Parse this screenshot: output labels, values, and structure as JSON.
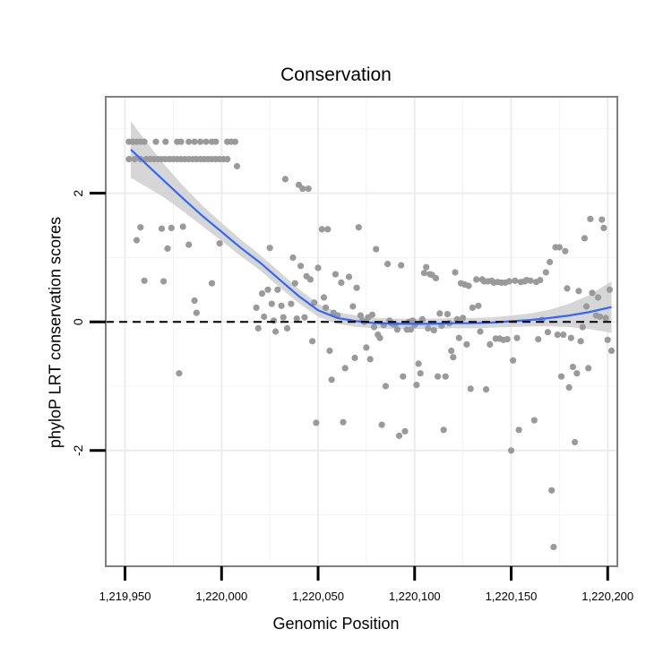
{
  "chart_data": {
    "type": "scatter",
    "title": "Conservation",
    "xlabel": "Genomic Position",
    "ylabel": "phyloP LRT conservation scores",
    "xlim": [
      1219940,
      1220205
    ],
    "ylim": [
      -3.8,
      3.5
    ],
    "x_ticks": [
      1219950,
      1220000,
      1220050,
      1220100,
      1220150,
      1220200
    ],
    "x_tick_labels": [
      "1,219,950",
      "1,220,000",
      "1,220,050",
      "1,220,100",
      "1,220,150",
      "1,220,200"
    ],
    "y_ticks": [
      -2,
      0,
      2
    ],
    "y_tick_labels": [
      "-2",
      "0",
      "2"
    ],
    "reference_line": {
      "y": 0,
      "style": "dashed"
    },
    "colors": {
      "points": "#9a9a9a",
      "smooth_line": "#3366ff",
      "ribbon": "#cfcfcf",
      "grid": "#ececec",
      "panel_border": "#808080"
    },
    "points": [
      [
        1219952,
        2.8
      ],
      [
        1219954,
        2.8
      ],
      [
        1219956,
        2.8
      ],
      [
        1219958,
        2.8
      ],
      [
        1219960,
        2.8
      ],
      [
        1219966,
        2.8
      ],
      [
        1219971,
        2.8
      ],
      [
        1219977,
        2.8
      ],
      [
        1219979,
        2.8
      ],
      [
        1219983,
        2.8
      ],
      [
        1219986,
        2.8
      ],
      [
        1219989,
        2.8
      ],
      [
        1219992,
        2.8
      ],
      [
        1219995,
        2.8
      ],
      [
        1219997,
        2.8
      ],
      [
        1220003,
        2.8
      ],
      [
        1220005,
        2.8
      ],
      [
        1220007,
        2.8
      ],
      [
        1219952,
        2.53
      ],
      [
        1219955,
        2.53
      ],
      [
        1219958,
        2.53
      ],
      [
        1219961,
        2.53
      ],
      [
        1219963,
        2.53
      ],
      [
        1219965,
        2.53
      ],
      [
        1219967,
        2.53
      ],
      [
        1219969,
        2.53
      ],
      [
        1219971,
        2.53
      ],
      [
        1219973,
        2.53
      ],
      [
        1219975,
        2.53
      ],
      [
        1219977,
        2.53
      ],
      [
        1219979,
        2.53
      ],
      [
        1219981,
        2.53
      ],
      [
        1219983,
        2.53
      ],
      [
        1219985,
        2.53
      ],
      [
        1219987,
        2.53
      ],
      [
        1219989,
        2.53
      ],
      [
        1219991,
        2.53
      ],
      [
        1219993,
        2.53
      ],
      [
        1219995,
        2.53
      ],
      [
        1219997,
        2.53
      ],
      [
        1219999,
        2.53
      ],
      [
        1220001,
        2.53
      ],
      [
        1220003,
        2.53
      ],
      [
        1220008,
        2.42
      ],
      [
        1219956,
        1.27
      ],
      [
        1219958,
        1.47
      ],
      [
        1219960,
        0.64
      ],
      [
        1219969,
        1.45
      ],
      [
        1219970,
        0.63
      ],
      [
        1219972,
        1.14
      ],
      [
        1219974,
        1.46
      ],
      [
        1219978,
        -0.8
      ],
      [
        1219980,
        1.48
      ],
      [
        1219983,
        1.2
      ],
      [
        1219986,
        0.33
      ],
      [
        1219987,
        0.14
      ],
      [
        1219995,
        0.6
      ],
      [
        1219999,
        1.22
      ],
      [
        1220018,
        0.22
      ],
      [
        1220019,
        -0.1
      ],
      [
        1220021,
        0.44
      ],
      [
        1220022,
        0.08
      ],
      [
        1220024,
        0.5
      ],
      [
        1220025,
        1.15
      ],
      [
        1220026,
        0.28
      ],
      [
        1220027,
        0.02
      ],
      [
        1220028,
        -0.15
      ],
      [
        1220029,
        0.5
      ],
      [
        1220031,
        0.25
      ],
      [
        1220032,
        0.07
      ],
      [
        1220033,
        2.22
      ],
      [
        1220034,
        -0.1
      ],
      [
        1220036,
        0.28
      ],
      [
        1220037,
        1.0
      ],
      [
        1220038,
        0.6
      ],
      [
        1220039,
        0.05
      ],
      [
        1220040,
        2.13
      ],
      [
        1220041,
        0.87
      ],
      [
        1220042,
        2.07
      ],
      [
        1220043,
        0.07
      ],
      [
        1220044,
        0.71
      ],
      [
        1220045,
        2.07
      ],
      [
        1220046,
        0.66
      ],
      [
        1220047,
        -0.3
      ],
      [
        1220048,
        0.3
      ],
      [
        1220049,
        -1.57
      ],
      [
        1220050,
        0.84
      ],
      [
        1220052,
        1.44
      ],
      [
        1220053,
        0.38
      ],
      [
        1220054,
        0.22
      ],
      [
        1220055,
        1.44
      ],
      [
        1220056,
        -0.45
      ],
      [
        1220057,
        -0.9
      ],
      [
        1220058,
        0.14
      ],
      [
        1220059,
        0.74
      ],
      [
        1220060,
        0.1
      ],
      [
        1220062,
        0.61
      ],
      [
        1220063,
        -1.56
      ],
      [
        1220064,
        -0.72
      ],
      [
        1220066,
        0.7
      ],
      [
        1220068,
        0.24
      ],
      [
        1220069,
        -0.56
      ],
      [
        1220070,
        0.53
      ],
      [
        1220071,
        1.47
      ],
      [
        1220072,
        0.1
      ],
      [
        1220073,
        0.02
      ],
      [
        1220074,
        0.0
      ],
      [
        1220075,
        -0.4
      ],
      [
        1220076,
        0.07
      ],
      [
        1220077,
        -0.58
      ],
      [
        1220078,
        0.11
      ],
      [
        1220079,
        -0.08
      ],
      [
        1220080,
        1.13
      ],
      [
        1220081,
        -0.2
      ],
      [
        1220082,
        -0.25
      ],
      [
        1220083,
        -1.6
      ],
      [
        1220084,
        -0.05
      ],
      [
        1220085,
        -1.0
      ],
      [
        1220086,
        0.9
      ],
      [
        1220087,
        0.02
      ],
      [
        1220088,
        -0.02
      ],
      [
        1220089,
        -0.04
      ],
      [
        1220090,
        -0.04
      ],
      [
        1220091,
        -0.12
      ],
      [
        1220092,
        -1.77
      ],
      [
        1220093,
        0.88
      ],
      [
        1220094,
        -0.85
      ],
      [
        1220095,
        -1.7
      ],
      [
        1220096,
        -0.12
      ],
      [
        1220097,
        0.0
      ],
      [
        1220098,
        -0.12
      ],
      [
        1220099,
        0.02
      ],
      [
        1220100,
        -0.05
      ],
      [
        1220101,
        -0.98
      ],
      [
        1220102,
        -0.65
      ],
      [
        1220103,
        -0.8
      ],
      [
        1220104,
        0.04
      ],
      [
        1220105,
        0.76
      ],
      [
        1220106,
        0.85
      ],
      [
        1220107,
        -0.1
      ],
      [
        1220108,
        0.74
      ],
      [
        1220109,
        0.73
      ],
      [
        1220110,
        -0.13
      ],
      [
        1220111,
        0.68
      ],
      [
        1220112,
        -0.85
      ],
      [
        1220113,
        0.13
      ],
      [
        1220114,
        -0.06
      ],
      [
        1220115,
        -1.68
      ],
      [
        1220116,
        -0.85
      ],
      [
        1220117,
        0.12
      ],
      [
        1220118,
        -0.02
      ],
      [
        1220119,
        -0.45
      ],
      [
        1220120,
        -0.55
      ],
      [
        1220121,
        0.77
      ],
      [
        1220122,
        0.04
      ],
      [
        1220123,
        -0.25
      ],
      [
        1220124,
        0.6
      ],
      [
        1220125,
        0.06
      ],
      [
        1220126,
        0.58
      ],
      [
        1220127,
        -0.35
      ],
      [
        1220128,
        0.56
      ],
      [
        1220129,
        -1.04
      ],
      [
        1220130,
        0.22
      ],
      [
        1220132,
        0.66
      ],
      [
        1220133,
        0.25
      ],
      [
        1220134,
        -0.15
      ],
      [
        1220135,
        0.66
      ],
      [
        1220136,
        0.63
      ],
      [
        1220137,
        -1.05
      ],
      [
        1220138,
        0.63
      ],
      [
        1220139,
        -0.35
      ],
      [
        1220140,
        0.64
      ],
      [
        1220141,
        0.61
      ],
      [
        1220142,
        -0.26
      ],
      [
        1220143,
        0.62
      ],
      [
        1220144,
        -0.26
      ],
      [
        1220145,
        0.61
      ],
      [
        1220146,
        -0.28
      ],
      [
        1220147,
        0.61
      ],
      [
        1220148,
        -0.27
      ],
      [
        1220149,
        0.63
      ],
      [
        1220150,
        -2.0
      ],
      [
        1220151,
        -0.6
      ],
      [
        1220152,
        0.64
      ],
      [
        1220153,
        -0.25
      ],
      [
        1220154,
        -1.68
      ],
      [
        1220155,
        0.62
      ],
      [
        1220157,
        0.63
      ],
      [
        1220158,
        0.65
      ],
      [
        1220160,
        0.64
      ],
      [
        1220162,
        -1.53
      ],
      [
        1220163,
        0.62
      ],
      [
        1220164,
        -0.27
      ],
      [
        1220165,
        0.65
      ],
      [
        1220166,
        0.03
      ],
      [
        1220168,
        0.77
      ],
      [
        1220169,
        -0.16
      ],
      [
        1220170,
        0.93
      ],
      [
        1220171,
        -2.62
      ],
      [
        1220172,
        -3.5
      ],
      [
        1220173,
        1.16
      ],
      [
        1220174,
        -0.2
      ],
      [
        1220175,
        1.16
      ],
      [
        1220176,
        -0.85
      ],
      [
        1220177,
        -0.2
      ],
      [
        1220178,
        1.1
      ],
      [
        1220179,
        0.52
      ],
      [
        1220180,
        -1.02
      ],
      [
        1220181,
        -0.25
      ],
      [
        1220182,
        -0.7
      ],
      [
        1220183,
        -1.87
      ],
      [
        1220184,
        -0.8
      ],
      [
        1220185,
        0.48
      ],
      [
        1220186,
        -0.3
      ],
      [
        1220187,
        -0.08
      ],
      [
        1220188,
        1.3
      ],
      [
        1220189,
        0.24
      ],
      [
        1220190,
        -0.72
      ],
      [
        1220191,
        1.6
      ],
      [
        1220192,
        0.45
      ],
      [
        1220194,
        0.1
      ],
      [
        1220195,
        0.38
      ],
      [
        1220196,
        0.08
      ],
      [
        1220197,
        1.59
      ],
      [
        1220198,
        1.46
      ],
      [
        1220199,
        0.06
      ],
      [
        1220200,
        -0.28
      ],
      [
        1220201,
        0.5
      ],
      [
        1220202,
        -0.45
      ]
    ],
    "smooth": {
      "x": [
        1219953,
        1219960,
        1219970,
        1219980,
        1219990,
        1220000,
        1220010,
        1220020,
        1220030,
        1220040,
        1220050,
        1220060,
        1220070,
        1220080,
        1220090,
        1220100,
        1220110,
        1220120,
        1220130,
        1220140,
        1220150,
        1220160,
        1220170,
        1220180,
        1220190,
        1220202
      ],
      "y": [
        2.68,
        2.48,
        2.2,
        1.92,
        1.65,
        1.4,
        1.15,
        0.92,
        0.66,
        0.4,
        0.18,
        0.06,
        0.01,
        -0.02,
        -0.03,
        -0.03,
        -0.03,
        -0.02,
        -0.02,
        -0.01,
        0.01,
        0.03,
        0.06,
        0.1,
        0.15,
        0.23
      ],
      "se": [
        0.44,
        0.36,
        0.26,
        0.2,
        0.16,
        0.14,
        0.13,
        0.12,
        0.12,
        0.11,
        0.1,
        0.09,
        0.09,
        0.08,
        0.08,
        0.08,
        0.08,
        0.08,
        0.08,
        0.08,
        0.09,
        0.1,
        0.13,
        0.18,
        0.26,
        0.4
      ]
    }
  }
}
